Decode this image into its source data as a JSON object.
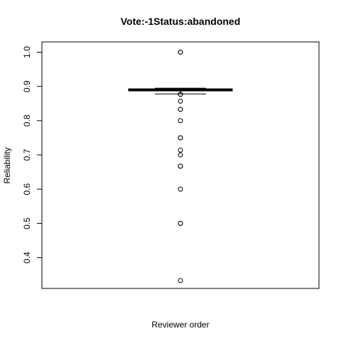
{
  "chart_data": {
    "type": "boxplot",
    "title": "Vote:-1Status:abandoned",
    "xlabel": "Reviewer order",
    "ylabel": "Reliability",
    "ylim": [
      0.31,
      1.03
    ],
    "yticks": [
      0.4,
      0.5,
      0.6,
      0.7,
      0.8,
      0.9,
      1.0
    ],
    "ytick_labels": [
      "0.4",
      "0.5",
      "0.6",
      "0.7",
      "0.8",
      "0.9",
      "1.0"
    ],
    "grid": false,
    "box": {
      "q1": 0.887,
      "median": 0.889,
      "q3": 0.893,
      "whisker_low": 0.878,
      "whisker_high": 0.895
    },
    "outliers": [
      1.0,
      1.0,
      0.877,
      0.877,
      0.857,
      0.833,
      0.833,
      0.8,
      0.75,
      0.75,
      0.714,
      0.7,
      0.667,
      0.667,
      0.6,
      0.5,
      0.5,
      0.333
    ]
  }
}
